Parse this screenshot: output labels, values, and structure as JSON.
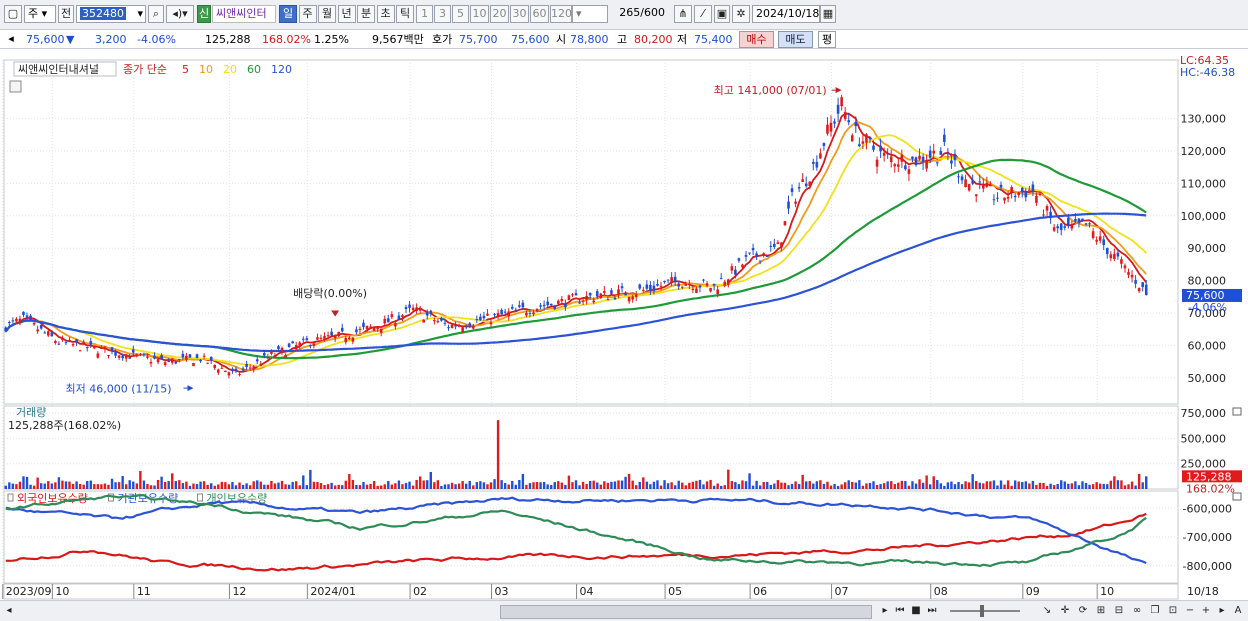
{
  "toolbar": {
    "period_select": "주",
    "prev_button": "전",
    "code_input": "352480",
    "credit_badge": "신",
    "stock_name": "씨앤씨인터",
    "period_tabs": [
      "일",
      "주",
      "월",
      "년",
      "분",
      "초",
      "틱"
    ],
    "selected_period": "일",
    "interval_buttons": [
      "1",
      "3",
      "5",
      "10",
      "20",
      "30",
      "60",
      "120"
    ],
    "count_value": "265",
    "count_total": "/600",
    "date_value": "2024/10/18"
  },
  "quote": {
    "price": "75,600",
    "arrow": "▼",
    "change": "3,200",
    "change_pct": "-4.06%",
    "volume": "125,288",
    "volume_ratio": "168.02%",
    "turnover_rate": "1.25%",
    "amount": "9,567백만",
    "ask_label": "호가",
    "ask": "75,700",
    "bid": "75,600",
    "open_label": "시",
    "open": "78,800",
    "high_label": "고",
    "high": "80,200",
    "low_label": "저",
    "low": "75,400",
    "buy_button": "매수",
    "sell_button": "매도",
    "eval_button": "평"
  },
  "chart_data": [
    {
      "type": "candlestick",
      "title": "씨앤씨인터내셔널",
      "legend_label": "종가 단순",
      "ma_periods": [
        "5",
        "10",
        "20",
        "60",
        "120"
      ],
      "ma_colors": [
        "#d81818",
        "#f39a1a",
        "#f1e11c",
        "#1e9a38",
        "#2c52d6"
      ],
      "lc_label": "LC:64.35",
      "hc_label": "HC:-46.38",
      "y_ticks": [
        "130,000",
        "120,000",
        "110,000",
        "100,000",
        "90,000",
        "80,000",
        "70,000",
        "60,000",
        "50,000"
      ],
      "ylim": [
        42000,
        148000
      ],
      "current_price": "75,600",
      "current_change": "-4.06%",
      "annotations": {
        "high": "최고 141,000 (07/01)",
        "low": "최저 46,000 (11/15)",
        "dividend": "배당락(0.00%)"
      },
      "close_anchors": [
        [
          0,
          66000
        ],
        [
          5,
          68000
        ],
        [
          15,
          61000
        ],
        [
          30,
          58000
        ],
        [
          45,
          55000
        ],
        [
          55,
          56000
        ],
        [
          65,
          51000
        ],
        [
          70,
          54000
        ],
        [
          75,
          57000
        ],
        [
          85,
          61000
        ],
        [
          95,
          63000
        ],
        [
          105,
          66000
        ],
        [
          115,
          71000
        ],
        [
          125,
          66000
        ],
        [
          135,
          68000
        ],
        [
          150,
          72000
        ],
        [
          165,
          75000
        ],
        [
          180,
          77000
        ],
        [
          190,
          80000
        ],
        [
          200,
          78000
        ],
        [
          210,
          87000
        ],
        [
          218,
          90000
        ],
        [
          222,
          105000
        ],
        [
          228,
          115000
        ],
        [
          233,
          128000
        ],
        [
          236,
          134000
        ],
        [
          240,
          125000
        ],
        [
          248,
          118000
        ],
        [
          256,
          117000
        ],
        [
          265,
          120000
        ],
        [
          272,
          110000
        ],
        [
          280,
          106000
        ],
        [
          290,
          108000
        ],
        [
          297,
          95000
        ],
        [
          305,
          97000
        ],
        [
          315,
          85000
        ],
        [
          320,
          79000
        ],
        [
          322,
          75600
        ]
      ],
      "ma_values_last": {
        "5": 79500,
        "10": 82000,
        "20": 88500,
        "60": 101000,
        "120": 100000
      }
    },
    {
      "type": "bar",
      "title": "거래량",
      "value_label": "125,288주(168.02%)",
      "y_ticks": [
        "750,000",
        "500,000",
        "250,000"
      ],
      "ylim": [
        0,
        800000
      ],
      "current_value": "125,288",
      "current_ratio": "168.02%",
      "spike_value": 680000
    },
    {
      "type": "line",
      "series": [
        {
          "name": "외국인보유수량",
          "color": "#d81818"
        },
        {
          "name": "기관보유수량",
          "color": "#2c52d6"
        },
        {
          "name": "개인보유수량",
          "color": "#2e8b57"
        }
      ],
      "y_ticks": [
        "-600,000",
        "-700,000",
        "-800,000"
      ],
      "x_ticks": [
        {
          "label": "2023/09",
          "i": 0
        },
        {
          "label": "10",
          "i": 14
        },
        {
          "label": "11",
          "i": 37
        },
        {
          "label": "12",
          "i": 64
        },
        {
          "label": "2024/01",
          "i": 86
        },
        {
          "label": "02",
          "i": 115
        },
        {
          "label": "03",
          "i": 138
        },
        {
          "label": "04",
          "i": 162
        },
        {
          "label": "05",
          "i": 187
        },
        {
          "label": "06",
          "i": 211
        },
        {
          "label": "07",
          "i": 234
        },
        {
          "label": "08",
          "i": 262
        },
        {
          "label": "09",
          "i": 288
        },
        {
          "label": "10",
          "i": 309
        }
      ],
      "end_date_label": "10/18"
    }
  ]
}
